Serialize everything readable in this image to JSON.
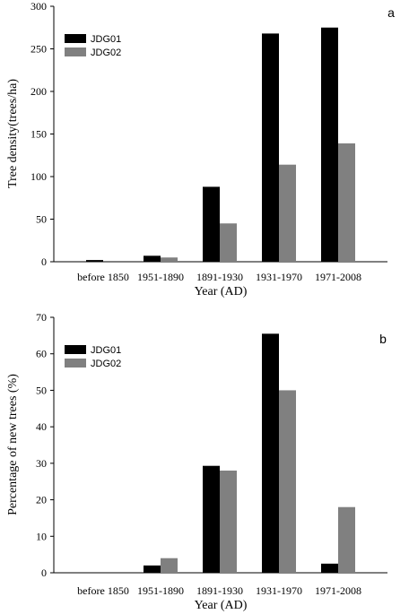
{
  "chart_data": [
    {
      "type": "bar",
      "panel_label": "a",
      "categories": [
        "before 1850",
        "1951-1890",
        "1891-1930",
        "1931-1970",
        "1971-2008"
      ],
      "series": [
        {
          "name": "JDG01",
          "values": [
            2,
            7,
            88,
            268,
            275
          ],
          "color": "#000000"
        },
        {
          "name": "JDG02",
          "values": [
            0,
            5,
            45,
            114,
            139
          ],
          "color": "#808080"
        }
      ],
      "xlabel": "Year (AD)",
      "ylabel": "Tree density(trees/ha)",
      "ylim": [
        0,
        300
      ],
      "yticks": [
        "0",
        "50",
        "100",
        "150",
        "200",
        "250",
        "300"
      ],
      "grid": false,
      "legend": "top-left"
    },
    {
      "type": "bar",
      "panel_label": "b",
      "categories": [
        "before 1850",
        "1951-1890",
        "1891-1930",
        "1931-1970",
        "1971-2008"
      ],
      "series": [
        {
          "name": "JDG01",
          "values": [
            0,
            2,
            29.3,
            65.5,
            2.5
          ],
          "color": "#000000"
        },
        {
          "name": "JDG02",
          "values": [
            0,
            4,
            28,
            50,
            18
          ],
          "color": "#808080"
        }
      ],
      "xlabel": "Year (AD)",
      "ylabel": "Percentage of new trees (%)",
      "ylim": [
        0,
        70
      ],
      "yticks": [
        "0",
        "10",
        "20",
        "30",
        "40",
        "50",
        "60",
        "70"
      ],
      "grid": false,
      "legend": "top-left"
    }
  ]
}
